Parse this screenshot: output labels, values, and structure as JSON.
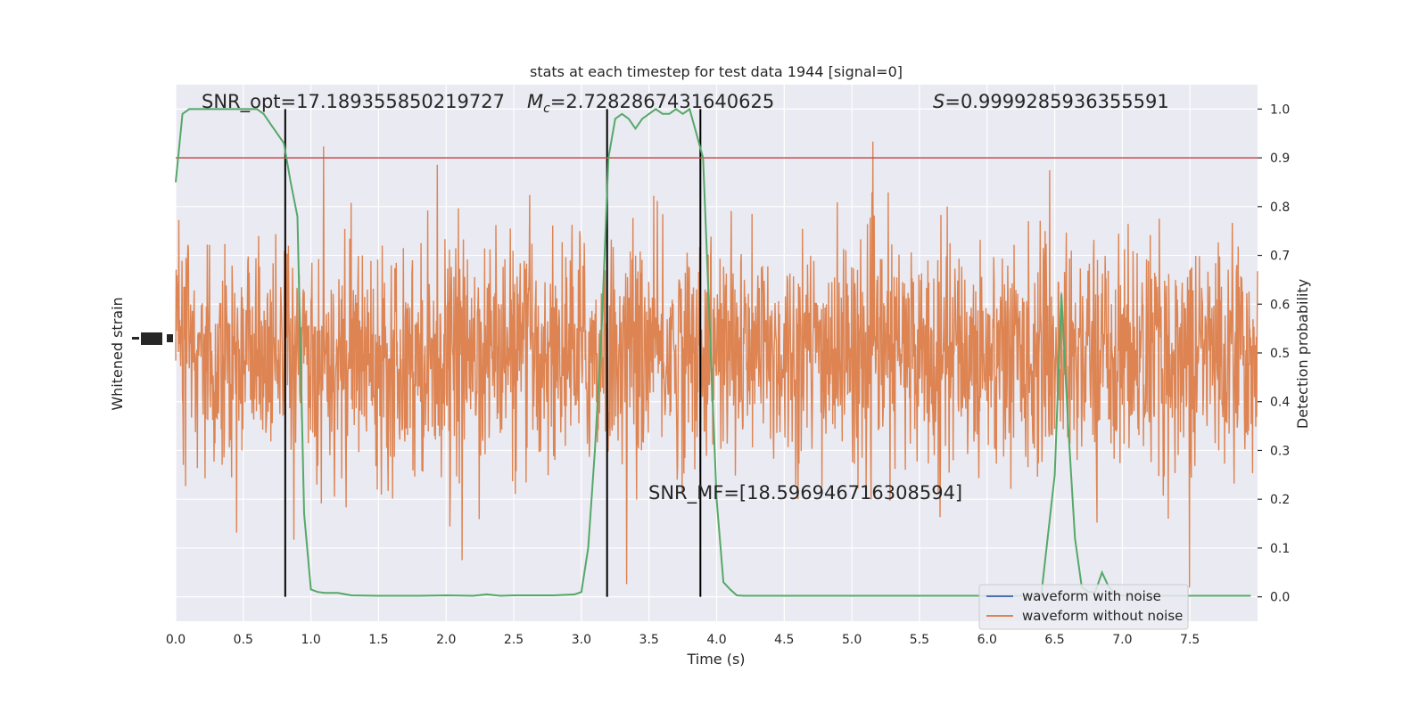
{
  "chart_data": {
    "type": "line",
    "title": "stats at each timestep for test data 1944 [signal=0]",
    "xlabel": "Time (s)",
    "ylabel_left": "Whitened strain",
    "ylabel_right": "Detection probability",
    "xlim": [
      0,
      8
    ],
    "ylim_right": [
      -0.05,
      1.05
    ],
    "x_ticks": [
      "0.0",
      "0.5",
      "1.0",
      "1.5",
      "2.0",
      "2.5",
      "3.0",
      "3.5",
      "4.0",
      "4.5",
      "5.0",
      "5.5",
      "6.0",
      "6.5",
      "7.0",
      "7.5"
    ],
    "y_ticks_right": [
      "0.0",
      "0.1",
      "0.2",
      "0.3",
      "0.4",
      "0.5",
      "0.6",
      "0.7",
      "0.8",
      "0.9",
      "1.0"
    ],
    "grid": true,
    "annotations": {
      "snr_opt": "SNR_opt=17.189355850219727",
      "mc_prefix": "M",
      "mc_sub": "c",
      "mc_value": "=2.7282867431640625",
      "s_prefix": "S",
      "s_value": "=0.9999285936355591",
      "snr_mf": "SNR_MF=[18.596946716308594]"
    },
    "threshold": 0.9,
    "vlines": [
      0.81,
      3.19,
      3.88
    ],
    "legend": {
      "placement": "lower-right",
      "entries": [
        {
          "label": "waveform with noise",
          "color": "#4c72b0"
        },
        {
          "label": "waveform without noise",
          "color": "#dd8452"
        }
      ]
    },
    "series": [
      {
        "name": "Detection probability",
        "color": "#55a868",
        "x": [
          0.0,
          0.05,
          0.1,
          0.2,
          0.3,
          0.4,
          0.5,
          0.6,
          0.65,
          0.7,
          0.75,
          0.8,
          0.85,
          0.9,
          0.95,
          1.0,
          1.05,
          1.1,
          1.2,
          1.3,
          1.5,
          1.8,
          2.0,
          2.2,
          2.3,
          2.4,
          2.5,
          2.6,
          2.8,
          2.95,
          3.0,
          3.05,
          3.1,
          3.15,
          3.2,
          3.25,
          3.3,
          3.35,
          3.4,
          3.45,
          3.5,
          3.55,
          3.6,
          3.65,
          3.7,
          3.75,
          3.8,
          3.85,
          3.9,
          3.95,
          4.0,
          4.05,
          4.1,
          4.15,
          4.2,
          4.3,
          5.0,
          6.0,
          6.4,
          6.5,
          6.55,
          6.6,
          6.65,
          6.7,
          6.75,
          6.8,
          6.85,
          6.9,
          6.95,
          7.0,
          7.5,
          7.95
        ],
        "y": [
          0.85,
          0.99,
          1.0,
          1.0,
          1.0,
          1.0,
          1.0,
          1.0,
          0.99,
          0.97,
          0.95,
          0.93,
          0.85,
          0.78,
          0.17,
          0.015,
          0.01,
          0.008,
          0.008,
          0.003,
          0.002,
          0.002,
          0.003,
          0.002,
          0.005,
          0.002,
          0.003,
          0.003,
          0.003,
          0.005,
          0.01,
          0.1,
          0.3,
          0.55,
          0.9,
          0.98,
          0.99,
          0.98,
          0.96,
          0.98,
          0.99,
          1.0,
          0.99,
          0.99,
          1.0,
          0.99,
          1.0,
          0.95,
          0.9,
          0.55,
          0.2,
          0.03,
          0.015,
          0.003,
          0.002,
          0.002,
          0.002,
          0.002,
          0.002,
          0.25,
          0.62,
          0.35,
          0.12,
          0.02,
          0.01,
          0.01,
          0.05,
          0.02,
          0.005,
          0.002,
          0.002,
          0.002
        ]
      },
      {
        "name": "waveform without noise",
        "color": "#dd8452"
      }
    ]
  }
}
